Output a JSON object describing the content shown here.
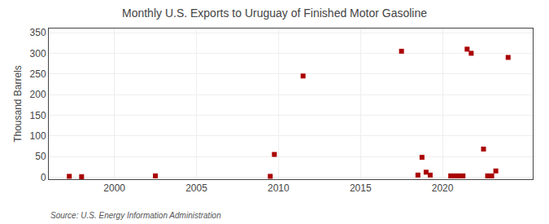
{
  "chart_data": {
    "type": "scatter",
    "title": "Monthly U.S. Exports to Uruguay of Finished Motor Gasoline",
    "ylabel": "Thousand Barrels",
    "annotations": [
      "Source: U.S. Energy Information Administration"
    ],
    "x": [
      1997.25,
      1998.0,
      2002.5,
      2009.5,
      2009.75,
      2011.5,
      2017.5,
      2018.5,
      2018.75,
      2019.0,
      2019.25,
      2020.5,
      2020.75,
      2021.0,
      2021.25,
      2021.5,
      2021.75,
      2022.5,
      2022.75,
      2023.0,
      2023.25,
      2024.0
    ],
    "values": [
      2,
      1,
      3,
      2,
      55,
      245,
      305,
      5,
      48,
      12,
      5,
      3,
      3,
      3,
      3,
      310,
      300,
      68,
      3,
      3,
      15,
      290
    ],
    "color": "#aa0000",
    "marker": "square",
    "xlim": [
      1996,
      2025.5
    ],
    "ylim": [
      -5,
      360
    ],
    "xticks": [
      2000,
      2005,
      2010,
      2015,
      2020
    ],
    "yticks": [
      0,
      50,
      100,
      150,
      200,
      250,
      300,
      350
    ],
    "grid": true
  }
}
